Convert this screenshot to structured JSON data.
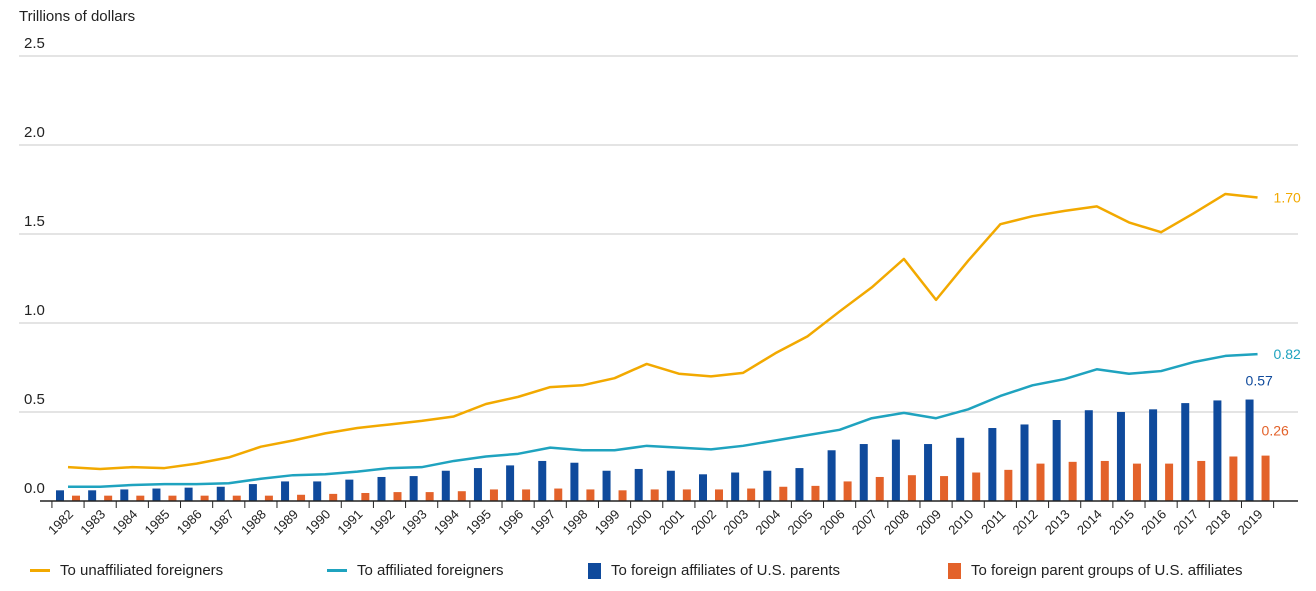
{
  "chart_data": {
    "type": "bar",
    "ylabel": "Trillions of dollars",
    "ylim": [
      0,
      2.5
    ],
    "y_ticks": [
      "0.0",
      "0.5",
      "1.0",
      "1.5",
      "2.0",
      "2.5"
    ],
    "grid": true,
    "legend_position": "bottom",
    "categories": [
      "1982",
      "1983",
      "1984",
      "1985",
      "1986",
      "1987",
      "1988",
      "1989",
      "1990",
      "1991",
      "1992",
      "1993",
      "1994",
      "1995",
      "1996",
      "1997",
      "1998",
      "1999",
      "2000",
      "2001",
      "2002",
      "2003",
      "2004",
      "2005",
      "2006",
      "2007",
      "2008",
      "2009",
      "2010",
      "2011",
      "2012",
      "2013",
      "2014",
      "2015",
      "2016",
      "2017",
      "2018",
      "2019"
    ],
    "series": [
      {
        "name": "To unaffiliated foreigners",
        "kind": "line",
        "color": "#f2a900",
        "end_label": "1.70",
        "values": [
          0.19,
          0.18,
          0.19,
          0.185,
          0.21,
          0.245,
          0.305,
          0.34,
          0.38,
          0.41,
          0.43,
          0.45,
          0.475,
          0.545,
          0.585,
          0.64,
          0.65,
          0.69,
          0.77,
          0.715,
          0.7,
          0.72,
          0.83,
          0.925,
          1.065,
          1.2,
          1.36,
          1.13,
          1.35,
          1.555,
          1.6,
          1.63,
          1.655,
          1.565,
          1.51,
          1.615,
          1.725,
          1.705
        ]
      },
      {
        "name": "To affiliated foreigners",
        "kind": "line",
        "color": "#1fa3bf",
        "end_label": "0.82",
        "values": [
          0.08,
          0.08,
          0.09,
          0.095,
          0.095,
          0.1,
          0.125,
          0.145,
          0.15,
          0.165,
          0.185,
          0.19,
          0.225,
          0.25,
          0.265,
          0.3,
          0.285,
          0.285,
          0.31,
          0.3,
          0.29,
          0.31,
          0.34,
          0.37,
          0.4,
          0.465,
          0.495,
          0.465,
          0.515,
          0.59,
          0.65,
          0.685,
          0.74,
          0.715,
          0.73,
          0.78,
          0.815,
          0.825
        ]
      },
      {
        "name": "To foreign affiliates of U.S. parents",
        "kind": "bar",
        "color": "#0f4a9c",
        "end_label": "0.57",
        "values": [
          0.06,
          0.06,
          0.065,
          0.07,
          0.075,
          0.08,
          0.095,
          0.11,
          0.11,
          0.12,
          0.135,
          0.14,
          0.17,
          0.185,
          0.2,
          0.225,
          0.215,
          0.17,
          0.18,
          0.17,
          0.15,
          0.16,
          0.17,
          0.185,
          0.285,
          0.32,
          0.345,
          0.32,
          0.355,
          0.41,
          0.43,
          0.455,
          0.51,
          0.5,
          0.515,
          0.55,
          0.565,
          0.57
        ]
      },
      {
        "name": "To foreign parent groups of U.S. affiliates",
        "kind": "bar",
        "color": "#e3622a",
        "end_label": "0.26",
        "values": [
          0.03,
          0.03,
          0.03,
          0.03,
          0.03,
          0.03,
          0.03,
          0.035,
          0.04,
          0.045,
          0.05,
          0.05,
          0.055,
          0.065,
          0.065,
          0.07,
          0.065,
          0.06,
          0.065,
          0.065,
          0.065,
          0.07,
          0.08,
          0.085,
          0.11,
          0.135,
          0.145,
          0.14,
          0.16,
          0.175,
          0.21,
          0.22,
          0.225,
          0.21,
          0.21,
          0.225,
          0.25,
          0.255
        ]
      }
    ]
  }
}
